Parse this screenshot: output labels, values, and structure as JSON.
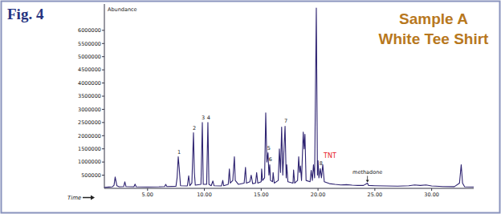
{
  "chart_data": {
    "type": "line",
    "figure_label": "Fig. 4",
    "title": "Sample A",
    "subtitle": "White Tee Shirt",
    "y_label": "Abundance",
    "x_label": "Time",
    "color": "#2e2371",
    "x": [
      1.2,
      1.6,
      1.9,
      2.05,
      2.15,
      2.3,
      2.5,
      2.9,
      3.0,
      3.1,
      3.8,
      3.9,
      4.0,
      5.0,
      6.0,
      6.5,
      6.6,
      6.7,
      7.5,
      7.6,
      7.7,
      7.78,
      7.9,
      8.5,
      8.62,
      8.72,
      8.9,
      9.04,
      9.12,
      9.2,
      9.7,
      9.82,
      9.9,
      10.2,
      10.31,
      10.4,
      10.6,
      10.75,
      10.85,
      11.5,
      11.62,
      11.7,
      12.1,
      12.2,
      12.28,
      12.5,
      12.64,
      12.72,
      13.0,
      13.5,
      13.62,
      13.7,
      14.0,
      14.12,
      14.25,
      14.5,
      14.6,
      14.7,
      15.0,
      15.04,
      15.12,
      15.3,
      15.4,
      15.5,
      15.6,
      15.68,
      15.75,
      15.82,
      16.0,
      16.05,
      16.15,
      16.5,
      16.6,
      16.7,
      16.8,
      16.9,
      17.1,
      17.2,
      17.25,
      17.35,
      17.8,
      17.85,
      17.95,
      18.2,
      18.3,
      18.38,
      18.45,
      18.55,
      18.7,
      18.78,
      18.85,
      18.95,
      19.3,
      19.4,
      19.5,
      19.6,
      19.7,
      19.85,
      19.95,
      20.0,
      20.08,
      20.2,
      20.3,
      20.42,
      20.55,
      21.0,
      21.5,
      22.0,
      22.5,
      23.0,
      23.5,
      24.0,
      24.35,
      24.45,
      25.0,
      26.0,
      27.0,
      28.0,
      28.5,
      29.0,
      29.5,
      30.0,
      31.0,
      32.0,
      32.45,
      32.6,
      32.72,
      32.9,
      33.7
    ],
    "values": [
      40000,
      50000,
      60000,
      120000,
      430000,
      100000,
      60000,
      70000,
      250000,
      70000,
      60000,
      160000,
      60000,
      55000,
      60000,
      70000,
      150000,
      70000,
      80000,
      400000,
      1200000,
      800000,
      100000,
      90000,
      480000,
      100000,
      200000,
      2110000,
      600000,
      120000,
      150000,
      2500000,
      150000,
      150000,
      2500000,
      150000,
      100000,
      280000,
      100000,
      90000,
      300000,
      100000,
      150000,
      740000,
      200000,
      300000,
      1200000,
      300000,
      150000,
      200000,
      800000,
      200000,
      250000,
      500000,
      180000,
      200000,
      600000,
      200000,
      250000,
      740000,
      300000,
      400000,
      2870000,
      1000000,
      1350000,
      500000,
      900000,
      300000,
      250000,
      600000,
      200000,
      300000,
      1500000,
      600000,
      2330000,
      500000,
      2360000,
      400000,
      900000,
      250000,
      200000,
      700000,
      200000,
      300000,
      1200000,
      600000,
      850000,
      300000,
      2140000,
      1500000,
      2050000,
      300000,
      250000,
      680000,
      300000,
      900000,
      400000,
      6850000,
      500000,
      1050000,
      400000,
      750000,
      400000,
      900000,
      250000,
      180000,
      150000,
      130000,
      140000,
      120000,
      110000,
      110000,
      200000,
      110000,
      100000,
      90000,
      85000,
      100000,
      130000,
      110000,
      130000,
      90000,
      70000,
      65000,
      200000,
      900000,
      200000,
      60000,
      55000
    ],
    "xlim": [
      1.2,
      33.7
    ],
    "xticks": [
      {
        "value": 5,
        "label": "5.00"
      },
      {
        "value": 10,
        "label": "10.00"
      },
      {
        "value": 15,
        "label": "15.00"
      },
      {
        "value": 20,
        "label": "20.00"
      },
      {
        "value": 25,
        "label": "25.00"
      },
      {
        "value": 30,
        "label": "30.00"
      }
    ],
    "ylim": [
      0,
      7000000
    ],
    "yticks": [
      500000,
      1000000,
      1500000,
      2000000,
      2500000,
      3000000,
      3500000,
      4000000,
      4500000,
      5000000,
      5500000,
      6000000
    ],
    "grid": false,
    "annotations": [
      {
        "text": "1",
        "x": 7.7,
        "y": 1200000
      },
      {
        "text": "2",
        "x": 9.04,
        "y": 2110000
      },
      {
        "text": "3",
        "x": 9.82,
        "y": 2500000
      },
      {
        "text": "4",
        "x": 10.31,
        "y": 2500000
      },
      {
        "text": "5",
        "x": 15.6,
        "y": 1350000
      },
      {
        "text": "6",
        "x": 15.75,
        "y": 900000
      },
      {
        "text": "7",
        "x": 17.1,
        "y": 2360000
      },
      {
        "text": "8",
        "x": 20.2,
        "y": 750000
      },
      {
        "text": "TNT",
        "x": 20.42,
        "y": 900000,
        "color": "#e8202a"
      },
      {
        "text": "methadone",
        "x": 24.35,
        "y": 200000
      }
    ]
  }
}
